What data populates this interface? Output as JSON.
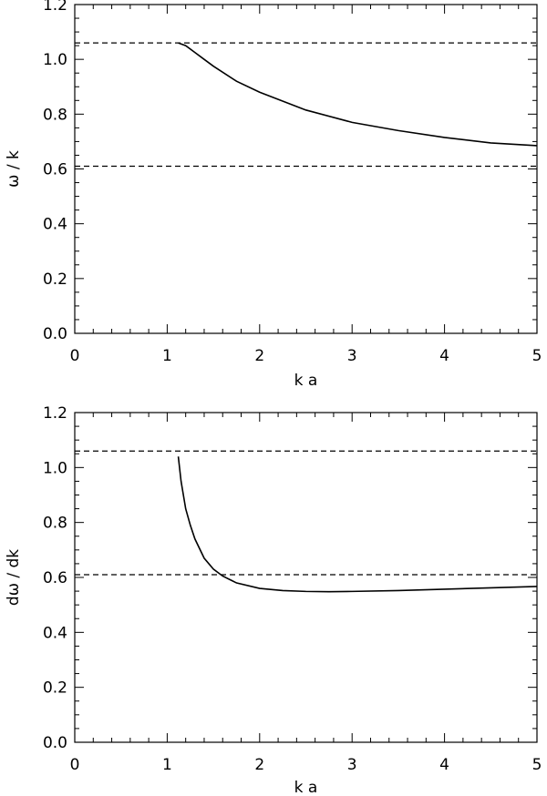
{
  "chart_data": [
    {
      "type": "line",
      "xlabel": "k a",
      "ylabel": "ω / k",
      "xlim": [
        0,
        5
      ],
      "ylim": [
        0,
        1.2
      ],
      "x_ticks": [
        "0",
        "1",
        "2",
        "3",
        "4",
        "5"
      ],
      "y_ticks": [
        "0.0",
        "0.2",
        "0.4",
        "0.6",
        "0.8",
        "1.0",
        "1.2"
      ],
      "reference_lines": [
        {
          "y": 1.06,
          "style": "dashed"
        },
        {
          "y": 0.61,
          "style": "dashed"
        }
      ],
      "series": [
        {
          "style": "solid",
          "x": [
            1.12,
            1.2,
            1.3,
            1.4,
            1.5,
            1.75,
            2.0,
            2.5,
            3.0,
            3.5,
            4.0,
            4.5,
            5.0
          ],
          "y": [
            1.06,
            1.05,
            1.025,
            1.0,
            0.975,
            0.92,
            0.88,
            0.815,
            0.77,
            0.74,
            0.715,
            0.695,
            0.685
          ]
        }
      ]
    },
    {
      "type": "line",
      "xlabel": "k a",
      "ylabel": "dω / dk",
      "xlim": [
        0,
        5
      ],
      "ylim": [
        0,
        1.2
      ],
      "x_ticks": [
        "0",
        "1",
        "2",
        "3",
        "4",
        "5"
      ],
      "y_ticks": [
        "0.0",
        "0.2",
        "0.4",
        "0.6",
        "0.8",
        "1.0",
        "1.2"
      ],
      "reference_lines": [
        {
          "y": 1.06,
          "style": "dashed"
        },
        {
          "y": 0.61,
          "style": "dashed"
        }
      ],
      "series": [
        {
          "style": "solid",
          "x": [
            1.12,
            1.15,
            1.2,
            1.25,
            1.3,
            1.4,
            1.5,
            1.6,
            1.75,
            2.0,
            2.25,
            2.5,
            2.75,
            3.0,
            3.5,
            4.0,
            4.5,
            5.0
          ],
          "y": [
            1.04,
            0.95,
            0.85,
            0.79,
            0.74,
            0.67,
            0.63,
            0.605,
            0.58,
            0.56,
            0.552,
            0.549,
            0.548,
            0.549,
            0.552,
            0.557,
            0.562,
            0.567
          ]
        }
      ]
    }
  ]
}
